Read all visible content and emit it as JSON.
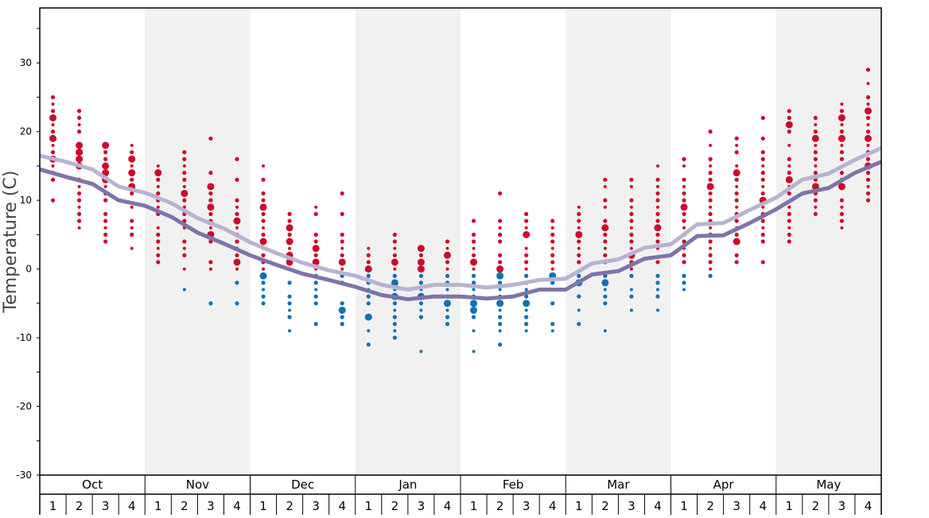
{
  "chart_data": {
    "type": "scatter",
    "ylabel": "Temperature (C)",
    "ylim": [
      -30,
      38
    ],
    "yticks": [
      30,
      20,
      10,
      0,
      -10,
      -20,
      -30
    ],
    "grid": false,
    "months": [
      "Oct",
      "Nov",
      "Dec",
      "Jan",
      "Feb",
      "Mar",
      "Apr",
      "May"
    ],
    "weeks": [
      "1",
      "2",
      "3",
      "4"
    ],
    "shaded_months": [
      "Nov",
      "Jan",
      "Mar",
      "May"
    ],
    "colors": {
      "positive": "#cc0a2a",
      "negative": "#0a72b5",
      "line_dark": "#7e74aa",
      "line_light": "#b9b3d1",
      "shade": "#f1f1f1"
    },
    "lines": [
      {
        "style": "light",
        "values_at_week_boundaries": [
          16.5,
          15.6,
          14.5,
          12,
          11.1,
          9.6,
          7.4,
          5.9,
          3.9,
          2.3,
          0.9,
          -0.2,
          -1,
          -2.3,
          -3,
          -2.3,
          -2.3,
          -2.7,
          -2.3,
          -1.6,
          -1.4,
          0.8,
          1.4,
          3.1,
          3.6,
          6.5,
          6.7,
          8.6,
          10.4,
          13,
          13.9,
          15.9,
          17.6
        ]
      },
      {
        "style": "dark",
        "values_at_week_boundaries": [
          14.5,
          13.4,
          12.4,
          10,
          9.2,
          7.6,
          5.3,
          3.7,
          2,
          0.6,
          -0.7,
          -1.6,
          -2.6,
          -3.8,
          -4.4,
          -4,
          -4,
          -4.3,
          -4,
          -3,
          -3,
          -0.8,
          -0.3,
          1.5,
          2,
          4.8,
          4.9,
          6.7,
          8.7,
          11,
          11.8,
          14,
          15.6
        ]
      }
    ],
    "observations": [
      {
        "month": "Oct",
        "week": "1",
        "temps": [
          25,
          24,
          23,
          22,
          21,
          20,
          19,
          18,
          17,
          16,
          15,
          14,
          13,
          10
        ],
        "large": [
          22,
          19,
          16
        ]
      },
      {
        "month": "Oct",
        "week": "2",
        "temps": [
          23,
          22,
          21,
          20,
          18,
          17,
          16,
          15,
          13,
          12,
          11,
          10,
          9,
          8,
          7,
          6
        ],
        "large": [
          18,
          17,
          16,
          15
        ]
      },
      {
        "month": "Oct",
        "week": "3",
        "temps": [
          18,
          17,
          16,
          15,
          14,
          13,
          12,
          11,
          10,
          8,
          7,
          6,
          5,
          4
        ],
        "large": [
          18,
          15,
          14,
          13
        ]
      },
      {
        "month": "Oct",
        "week": "4",
        "temps": [
          18,
          17,
          16,
          15,
          14,
          13,
          12,
          11,
          9,
          7,
          6,
          5,
          3
        ],
        "large": [
          16,
          14,
          12
        ]
      },
      {
        "month": "Nov",
        "week": "1",
        "temps": [
          15,
          14,
          13,
          12,
          11,
          10,
          9,
          8,
          6,
          5,
          4,
          3,
          2,
          1
        ],
        "large": [
          14
        ]
      },
      {
        "month": "Nov",
        "week": "2",
        "temps": [
          17,
          16,
          15,
          14,
          13,
          12,
          11,
          10,
          9,
          8,
          7,
          6,
          4,
          3,
          2,
          0,
          -3
        ],
        "large": [
          11
        ]
      },
      {
        "month": "Nov",
        "week": "3",
        "temps": [
          19,
          14,
          12,
          11,
          10,
          9,
          8,
          7,
          6,
          5,
          4,
          1,
          0,
          -5
        ],
        "large": [
          12,
          9,
          5
        ]
      },
      {
        "month": "Nov",
        "week": "4",
        "temps": [
          16,
          13,
          10,
          9,
          8,
          7,
          6,
          5,
          4,
          3,
          2,
          1,
          0,
          -2,
          -5
        ],
        "large": [
          7,
          1
        ]
      },
      {
        "month": "Dec",
        "week": "1",
        "temps": [
          15,
          13,
          11,
          10,
          9,
          8,
          7,
          6,
          5,
          4,
          3,
          2,
          1,
          0,
          -1,
          -2,
          -3,
          -4,
          -5
        ],
        "large": [
          9,
          4,
          -1
        ]
      },
      {
        "month": "Dec",
        "week": "2",
        "temps": [
          8,
          7,
          6,
          5,
          4,
          3,
          2,
          1,
          0,
          -2,
          -4,
          -5,
          -6,
          -7,
          -9
        ],
        "large": [
          6,
          4,
          2,
          1
        ]
      },
      {
        "month": "Dec",
        "week": "3",
        "temps": [
          9,
          8,
          5,
          4,
          3,
          2,
          1,
          0,
          -1,
          -2,
          -3,
          -4,
          -5,
          -8
        ],
        "large": [
          3,
          1
        ]
      },
      {
        "month": "Dec",
        "week": "4",
        "temps": [
          11,
          8,
          5,
          4,
          3,
          2,
          1,
          0,
          -1,
          -2,
          -5,
          -6,
          -7,
          -8
        ],
        "large": [
          1,
          -6
        ]
      },
      {
        "month": "Jan",
        "week": "1",
        "temps": [
          3,
          2,
          1,
          0,
          -1,
          -2,
          -3,
          -4,
          -5,
          -7,
          -9,
          -11
        ],
        "large": [
          0,
          -7
        ]
      },
      {
        "month": "Jan",
        "week": "2",
        "temps": [
          5,
          4,
          3,
          2,
          1,
          0,
          -1,
          -2,
          -3,
          -4,
          -5,
          -6,
          -7,
          -8,
          -9,
          -10
        ],
        "large": [
          1,
          -2,
          -4
        ]
      },
      {
        "month": "Jan",
        "week": "3",
        "temps": [
          3,
          2,
          1,
          0,
          -1,
          -2,
          -3,
          -4,
          -5,
          -6,
          -7,
          -12
        ],
        "large": [
          3,
          1,
          0,
          -4
        ]
      },
      {
        "month": "Jan",
        "week": "4",
        "temps": [
          4,
          3,
          2,
          1,
          0,
          -1,
          -2,
          -3,
          -4,
          -5,
          -6,
          -7,
          -8
        ],
        "large": [
          2,
          -5
        ]
      },
      {
        "month": "Feb",
        "week": "1",
        "temps": [
          7,
          5,
          4,
          3,
          2,
          1,
          0,
          -1,
          -2,
          -3,
          -4,
          -5,
          -6,
          -7,
          -9,
          -12
        ],
        "large": [
          1,
          -5,
          -6
        ]
      },
      {
        "month": "Feb",
        "week": "2",
        "temps": [
          11,
          7,
          6,
          5,
          4,
          2,
          1,
          0,
          -1,
          -2,
          -3,
          -4,
          -5,
          -6,
          -7,
          -8,
          -9,
          -11
        ],
        "large": [
          0,
          -1,
          -5
        ]
      },
      {
        "month": "Feb",
        "week": "3",
        "temps": [
          8,
          7,
          6,
          5,
          3,
          2,
          1,
          0,
          -1,
          -2,
          -3,
          -4,
          -5,
          -6,
          -7,
          -8,
          -9
        ],
        "large": [
          5,
          -5
        ]
      },
      {
        "month": "Feb",
        "week": "4",
        "temps": [
          7,
          6,
          5,
          4,
          3,
          2,
          1,
          0,
          -1,
          -2,
          -3,
          -5,
          -8,
          -9
        ],
        "large": [
          -1
        ]
      },
      {
        "month": "Mar",
        "week": "1",
        "temps": [
          9,
          8,
          7,
          6,
          5,
          4,
          3,
          2,
          1,
          -1,
          -2,
          -4,
          -6,
          -8
        ],
        "large": [
          5,
          -2
        ]
      },
      {
        "month": "Mar",
        "week": "2",
        "temps": [
          13,
          12,
          10,
          9,
          7,
          6,
          5,
          4,
          3,
          2,
          1,
          -1,
          -2,
          -3,
          -4,
          -5,
          -9
        ],
        "large": [
          6,
          -2
        ]
      },
      {
        "month": "Mar",
        "week": "3",
        "temps": [
          13,
          12,
          10,
          9,
          8,
          7,
          6,
          5,
          4,
          3,
          2,
          1,
          0,
          -1,
          -3,
          -4,
          -6
        ],
        "large": [
          2
        ]
      },
      {
        "month": "Mar",
        "week": "4",
        "temps": [
          15,
          13,
          12,
          11,
          10,
          9,
          8,
          7,
          6,
          5,
          4,
          3,
          1,
          -1,
          -2,
          -3,
          -4,
          -6
        ],
        "large": [
          6
        ]
      },
      {
        "month": "Apr",
        "week": "1",
        "temps": [
          16,
          15,
          13,
          12,
          11,
          10,
          9,
          8,
          7,
          6,
          5,
          4,
          3,
          2,
          1,
          -1,
          -2,
          -3
        ],
        "large": [
          9
        ]
      },
      {
        "month": "Apr",
        "week": "2",
        "temps": [
          20,
          18,
          16,
          15,
          14,
          13,
          12,
          11,
          10,
          9,
          8,
          7,
          6,
          5,
          4,
          3,
          2,
          1,
          0,
          -1
        ],
        "large": [
          12
        ]
      },
      {
        "month": "Apr",
        "week": "3",
        "temps": [
          19,
          18,
          17,
          15,
          14,
          13,
          12,
          11,
          10,
          9,
          8,
          7,
          6,
          5,
          4,
          2,
          1
        ],
        "large": [
          14,
          4
        ]
      },
      {
        "month": "Apr",
        "week": "4",
        "temps": [
          22,
          19,
          17,
          16,
          15,
          14,
          13,
          12,
          11,
          10,
          9,
          8,
          7,
          6,
          5,
          4,
          1
        ],
        "large": [
          10
        ]
      },
      {
        "month": "May",
        "week": "1",
        "temps": [
          23,
          22,
          21,
          20,
          18,
          16,
          15,
          14,
          13,
          12,
          11,
          9,
          8,
          7,
          6,
          5,
          4
        ],
        "large": [
          21,
          13
        ]
      },
      {
        "month": "May",
        "week": "2",
        "temps": [
          22,
          21,
          20,
          19,
          18,
          17,
          16,
          15,
          14,
          13,
          12,
          11,
          10,
          9,
          8
        ],
        "large": [
          19,
          12
        ]
      },
      {
        "month": "May",
        "week": "3",
        "temps": [
          24,
          23,
          22,
          21,
          20,
          19,
          18,
          17,
          16,
          14,
          13,
          12,
          10,
          9,
          8,
          7,
          6
        ],
        "large": [
          22,
          19,
          12
        ]
      },
      {
        "month": "May",
        "week": "4",
        "temps": [
          29,
          27,
          25,
          24,
          23,
          22,
          21,
          20,
          19,
          18,
          17,
          16,
          15,
          14,
          13,
          12,
          11,
          10
        ],
        "large": [
          23,
          19,
          15
        ]
      }
    ]
  }
}
